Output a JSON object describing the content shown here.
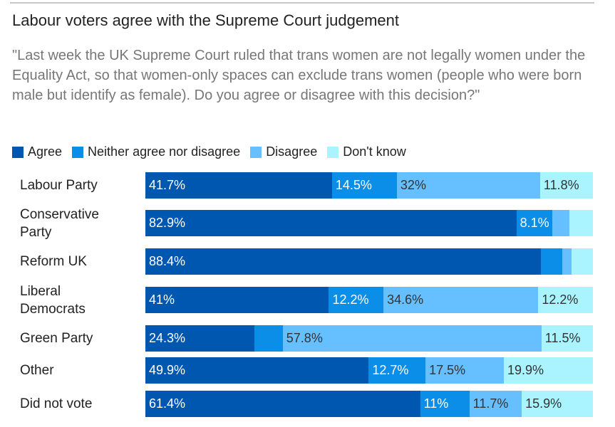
{
  "title": "Labour voters agree with the Supreme Court judgement",
  "subtitle": "\"Last week the UK Supreme Court ruled that trans women are not legally women under the Equality Act, so that women-only spaces can exclude trans women (people who were born male but identify as female). Do you agree or disagree with this decision?\"",
  "chart_data": {
    "type": "bar",
    "stacked": true,
    "orientation": "horizontal",
    "title": "Labour voters agree with the Supreme Court judgement",
    "categories": [
      "Labour Party",
      "Conservative Party",
      "Reform UK",
      "Liberal Democrats",
      "Green Party",
      "Other",
      "Did not vote"
    ],
    "series": [
      {
        "name": "Agree",
        "color": "#0057b0",
        "values": [
          41.7,
          82.9,
          88.4,
          41,
          24.3,
          49.9,
          61.4
        ],
        "labels": [
          "41.7%",
          "82.9%",
          "88.4%",
          "41%",
          "24.3%",
          "49.9%",
          "61.4%"
        ]
      },
      {
        "name": "Neither agree nor disagree",
        "color": "#0a8ee8",
        "values": [
          14.5,
          8.1,
          4.8,
          12.2,
          6.4,
          12.7,
          11
        ],
        "labels": [
          "14.5%",
          "8.1%",
          "",
          "12.2%",
          "",
          "12.7%",
          "11%"
        ]
      },
      {
        "name": "Disagree",
        "color": "#66bfff",
        "values": [
          32,
          3.7,
          2,
          34.6,
          57.8,
          17.5,
          11.7
        ],
        "labels": [
          "32%",
          "",
          "",
          "34.6%",
          "57.8%",
          "17.5%",
          "11.7%"
        ]
      },
      {
        "name": "Don't know",
        "color": "#aaf4ff",
        "values": [
          11.8,
          5.3,
          4.8,
          12.2,
          11.5,
          19.9,
          15.9
        ],
        "labels": [
          "11.8%",
          "",
          "",
          "12.2%",
          "11.5%",
          "19.9%",
          "15.9%"
        ]
      }
    ],
    "xlim": [
      0,
      100
    ],
    "legend": "top-left"
  }
}
